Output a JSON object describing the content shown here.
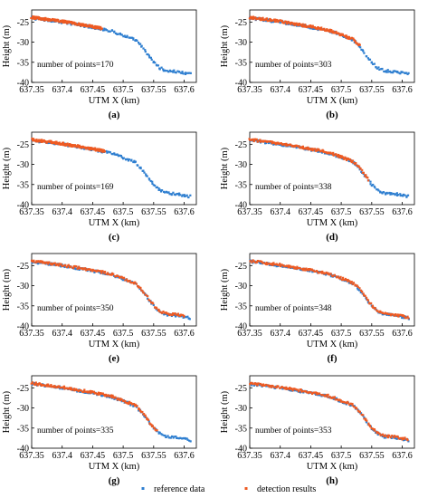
{
  "colors": {
    "reference": "#2f7fd0",
    "detection": "#ee5a22",
    "axis": "#000000"
  },
  "legend": {
    "position": "bottom-center",
    "items": [
      {
        "label": "reference data",
        "color": "#2f7fd0"
      },
      {
        "label": "detection results",
        "color": "#ee5a22"
      }
    ]
  },
  "chart_data": [
    {
      "type": "scatter",
      "panel_label": "(a)",
      "annotation": "number of points=170",
      "xlabel": "UTM X (km)",
      "ylabel": "Height (m)",
      "xlim": [
        637.35,
        637.62
      ],
      "ylim": [
        -40,
        -22
      ],
      "xticks": [
        637.35,
        637.4,
        637.45,
        637.5,
        637.55,
        637.6
      ],
      "xticklabels": [
        "637.35",
        "637.4",
        "637.45",
        "637.5",
        "637.55",
        "637.6"
      ],
      "yticks": [
        -25,
        -30,
        -35,
        -40
      ],
      "yticklabels": [
        "-25",
        "-30",
        "-35",
        "-40"
      ],
      "series": [
        {
          "name": "reference data",
          "x_range": [
            637.35,
            637.61
          ],
          "count": 170
        },
        {
          "name": "detection results",
          "x_range": [
            637.35,
            637.465
          ],
          "count": 170
        }
      ]
    },
    {
      "type": "scatter",
      "panel_label": "(b)",
      "annotation": "number of points=303",
      "xlabel": "UTM X (km)",
      "ylabel": "Height (m)",
      "xlim": [
        637.35,
        637.62
      ],
      "ylim": [
        -40,
        -22
      ],
      "xticks": [
        637.35,
        637.4,
        637.45,
        637.5,
        637.55,
        637.6
      ],
      "xticklabels": [
        "637.35",
        "637.4",
        "637.45",
        "637.5",
        "637.55",
        "637.6"
      ],
      "yticks": [
        -25,
        -30,
        -35,
        -40
      ],
      "yticklabels": [
        "-25",
        "-30",
        "-35",
        "-40"
      ],
      "series": [
        {
          "name": "reference data",
          "x_range": [
            637.35,
            637.61
          ],
          "count": 303
        },
        {
          "name": "detection results",
          "x_range": [
            637.35,
            637.53
          ],
          "count": 303
        }
      ]
    },
    {
      "type": "scatter",
      "panel_label": "(c)",
      "annotation": "number of points=169",
      "xlabel": "UTM X (km)",
      "ylabel": "Height (m)",
      "xlim": [
        637.35,
        637.62
      ],
      "ylim": [
        -40,
        -22
      ],
      "xticks": [
        637.35,
        637.4,
        637.45,
        637.5,
        637.55,
        637.6
      ],
      "xticklabels": [
        "637.35",
        "637.4",
        "637.45",
        "637.5",
        "637.55",
        "637.6"
      ],
      "yticks": [
        -25,
        -30,
        -35,
        -40
      ],
      "yticklabels": [
        "-25",
        "-30",
        "-35",
        "-40"
      ],
      "series": [
        {
          "name": "reference data",
          "x_range": [
            637.35,
            637.61
          ],
          "count": 169
        },
        {
          "name": "detection results",
          "x_range": [
            637.35,
            637.47
          ],
          "count": 169
        }
      ]
    },
    {
      "type": "scatter",
      "panel_label": "(d)",
      "annotation": "number of points=338",
      "xlabel": "UTM X (km)",
      "ylabel": "Height (m)",
      "xlim": [
        637.35,
        637.62
      ],
      "ylim": [
        -40,
        -22
      ],
      "xticks": [
        637.35,
        637.4,
        637.45,
        637.5,
        637.55,
        637.6
      ],
      "xticklabels": [
        "637.35",
        "637.4",
        "637.45",
        "637.5",
        "637.55",
        "637.6"
      ],
      "yticks": [
        -25,
        -30,
        -35,
        -40
      ],
      "yticklabels": [
        "-25",
        "-30",
        "-35",
        "-40"
      ],
      "series": [
        {
          "name": "reference data",
          "x_range": [
            637.35,
            637.61
          ],
          "count": 338
        },
        {
          "name": "detection results",
          "x_range": [
            637.35,
            637.545
          ],
          "count": 338
        }
      ]
    },
    {
      "type": "scatter",
      "panel_label": "(e)",
      "annotation": "number of points=350",
      "xlabel": "UTM X (km)",
      "ylabel": "Height (m)",
      "xlim": [
        637.35,
        637.62
      ],
      "ylim": [
        -40,
        -22
      ],
      "xticks": [
        637.35,
        637.4,
        637.45,
        637.5,
        637.55,
        637.6
      ],
      "xticklabels": [
        "637.35",
        "637.4",
        "637.45",
        "637.5",
        "637.55",
        "637.6"
      ],
      "yticks": [
        -25,
        -30,
        -35,
        -40
      ],
      "yticklabels": [
        "-25",
        "-30",
        "-35",
        "-40"
      ],
      "series": [
        {
          "name": "reference data",
          "x_range": [
            637.35,
            637.61
          ],
          "count": 350
        },
        {
          "name": "detection results",
          "x_range": [
            637.35,
            637.6
          ],
          "count": 350
        }
      ]
    },
    {
      "type": "scatter",
      "panel_label": "(f)",
      "annotation": "number of points=348",
      "xlabel": "UTM X (km)",
      "ylabel": "Height (m)",
      "xlim": [
        637.35,
        637.62
      ],
      "ylim": [
        -40,
        -22
      ],
      "xticks": [
        637.35,
        637.4,
        637.45,
        637.5,
        637.55,
        637.6
      ],
      "xticklabels": [
        "637.35",
        "637.4",
        "637.45",
        "637.5",
        "637.55",
        "637.6"
      ],
      "yticks": [
        -25,
        -30,
        -35,
        -40
      ],
      "yticklabels": [
        "-25",
        "-30",
        "-35",
        "-40"
      ],
      "series": [
        {
          "name": "reference data",
          "x_range": [
            637.35,
            637.61
          ],
          "count": 348
        },
        {
          "name": "detection results",
          "x_range": [
            637.35,
            637.61
          ],
          "count": 348
        }
      ]
    },
    {
      "type": "scatter",
      "panel_label": "(g)",
      "annotation": "number of points=335",
      "xlabel": "UTM X (km)",
      "ylabel": "Height (m)",
      "xlim": [
        637.35,
        637.62
      ],
      "ylim": [
        -40,
        -22
      ],
      "xticks": [
        637.35,
        637.4,
        637.45,
        637.5,
        637.55,
        637.6
      ],
      "xticklabels": [
        "637.35",
        "637.4",
        "637.45",
        "637.5",
        "637.55",
        "637.6"
      ],
      "yticks": [
        -25,
        -30,
        -35,
        -40
      ],
      "yticklabels": [
        "-25",
        "-30",
        "-35",
        "-40"
      ],
      "series": [
        {
          "name": "reference data",
          "x_range": [
            637.35,
            637.61
          ],
          "count": 335
        },
        {
          "name": "detection results",
          "x_range": [
            637.35,
            637.555
          ],
          "count": 335
        }
      ]
    },
    {
      "type": "scatter",
      "panel_label": "(h)",
      "annotation": "number of points=353",
      "xlabel": "UTM X (km)",
      "ylabel": "Height (m)",
      "xlim": [
        637.35,
        637.62
      ],
      "ylim": [
        -40,
        -22
      ],
      "xticks": [
        637.35,
        637.4,
        637.45,
        637.5,
        637.55,
        637.6
      ],
      "xticklabels": [
        "637.35",
        "637.4",
        "637.45",
        "637.5",
        "637.55",
        "637.6"
      ],
      "yticks": [
        -25,
        -30,
        -35,
        -40
      ],
      "yticklabels": [
        "-25",
        "-30",
        "-35",
        "-40"
      ],
      "series": [
        {
          "name": "reference data",
          "x_range": [
            637.35,
            637.61
          ],
          "count": 353
        },
        {
          "name": "detection results",
          "x_range": [
            637.35,
            637.61
          ],
          "count": 353
        }
      ]
    }
  ]
}
